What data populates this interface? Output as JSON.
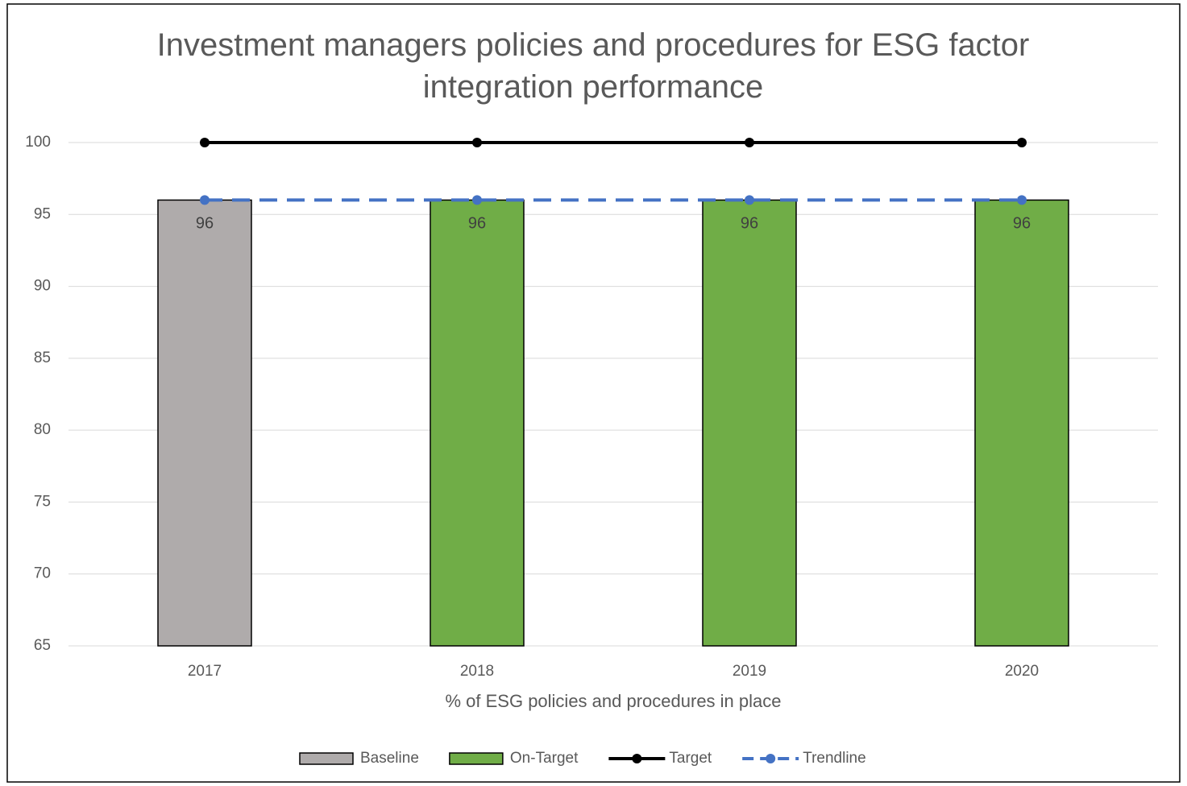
{
  "chart_data": {
    "type": "bar",
    "title": "Investment managers policies and procedures for ESG factor integration performance",
    "x_label": "% of ESG policies and procedures in place",
    "categories": [
      "2017",
      "2018",
      "2019",
      "2020"
    ],
    "series": [
      {
        "name": "Baseline",
        "type": "bar",
        "color": "#afabab",
        "values": [
          96,
          null,
          null,
          null
        ]
      },
      {
        "name": "On-Target",
        "type": "bar",
        "color": "#70ad47",
        "values": [
          null,
          96,
          96,
          96
        ]
      },
      {
        "name": "Target",
        "type": "line",
        "color": "#000000",
        "dashed": false,
        "values": [
          100,
          100,
          100,
          100
        ]
      },
      {
        "name": "Trendline",
        "type": "line",
        "color": "#4472c4",
        "dashed": true,
        "values": [
          96,
          96,
          96,
          96
        ]
      }
    ],
    "ylim": [
      65,
      100
    ],
    "yticks": [
      65,
      70,
      75,
      80,
      85,
      90,
      95,
      100
    ],
    "grid": true,
    "legend": "bottom"
  }
}
